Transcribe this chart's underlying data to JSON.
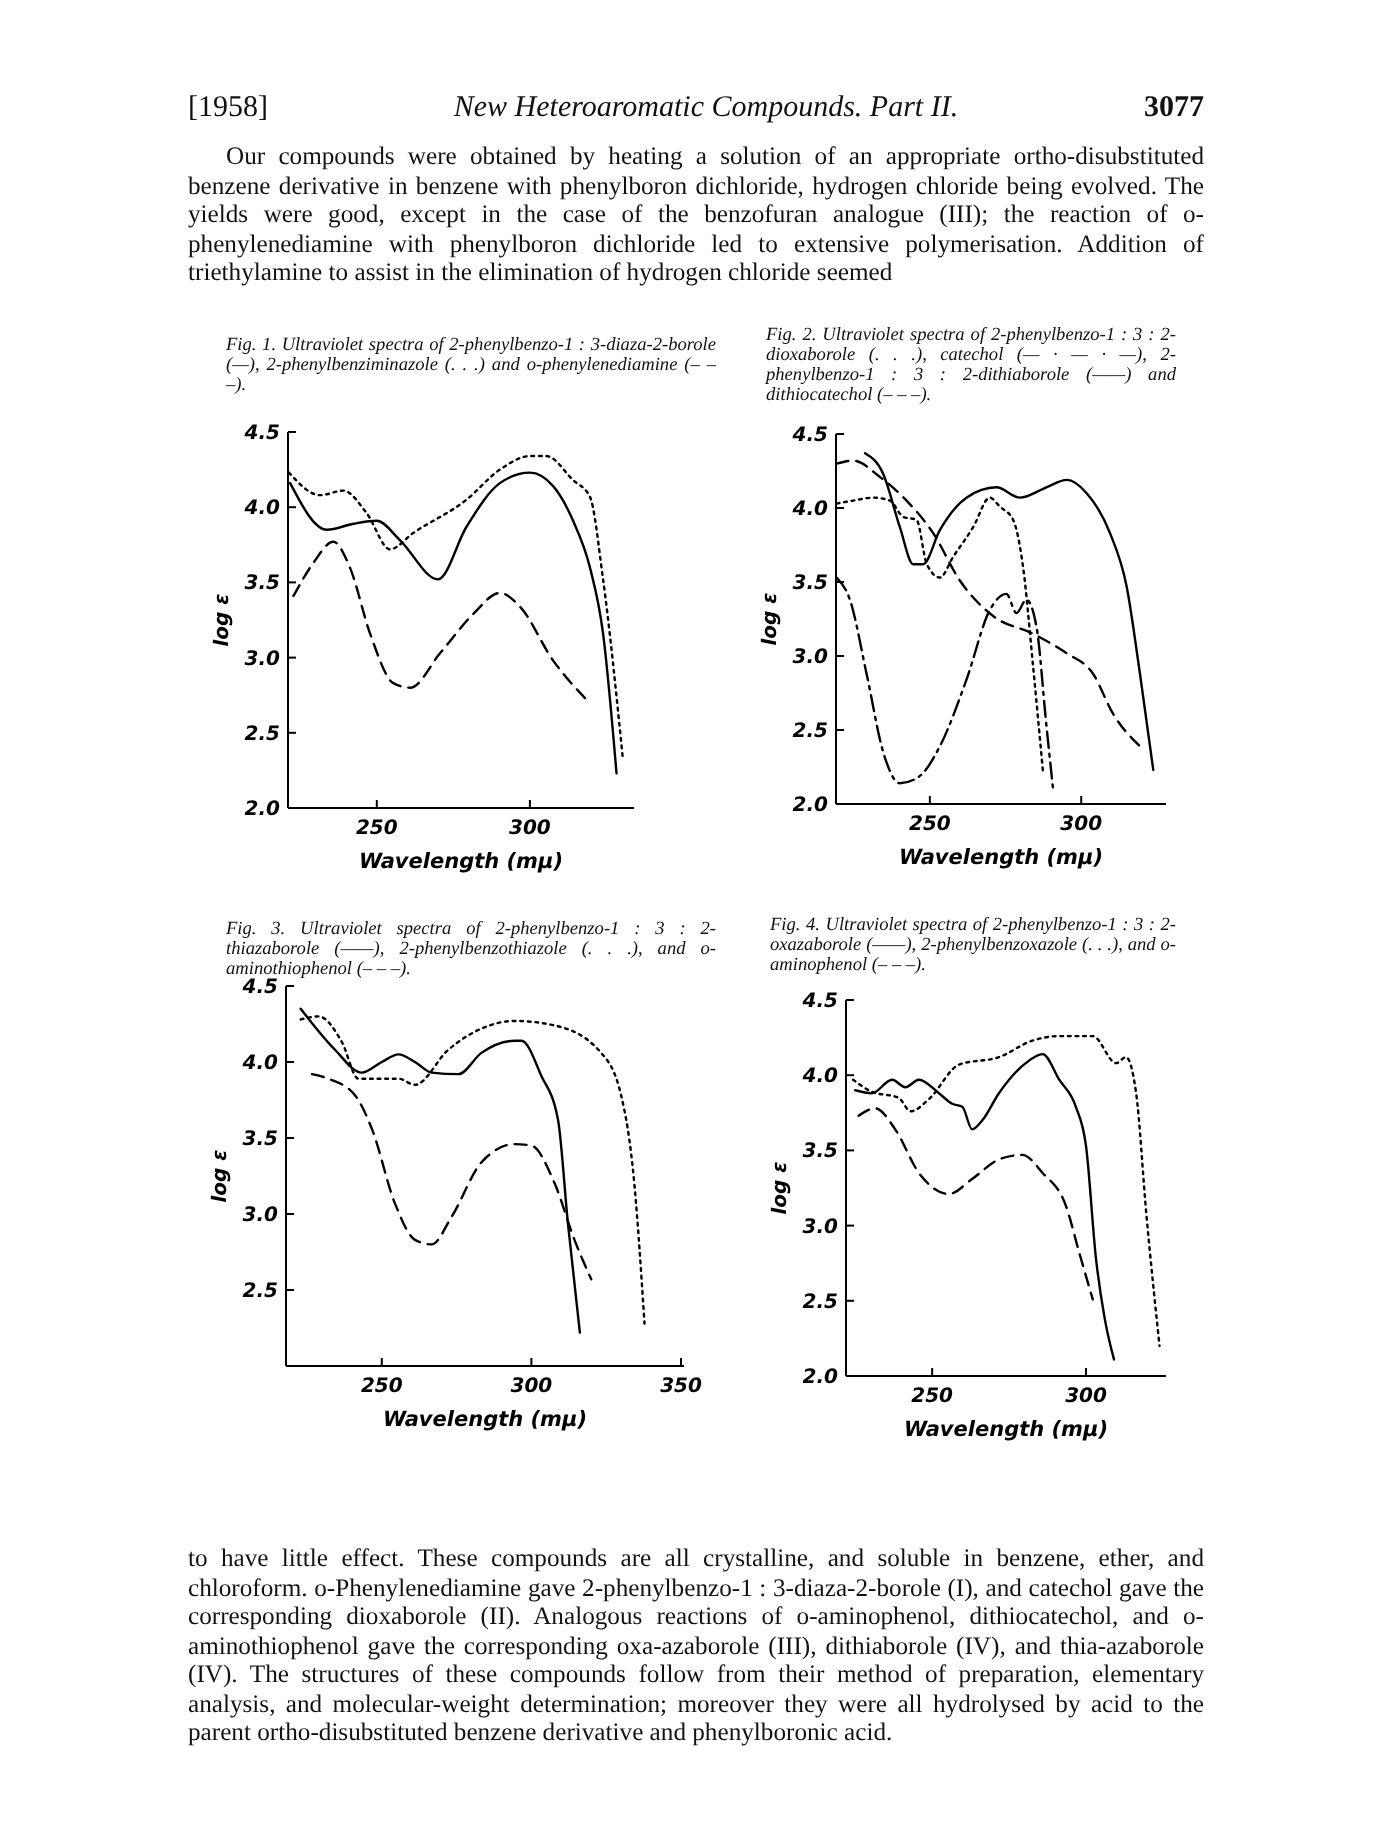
{
  "chart_data": [
    {
      "type": "other",
      "title": "New Heteroaromatic Compounds. Part II.",
      "annotations": [
        "[1958]",
        "3077",
        "Our compounds were obtained by heating a solution of an appropriate ortho-disubstituted benzene derivative in benzene with phenylboron dichloride, hydrogen chloride being evolved. The yields were good, except in the case of the benzofuran analogue (III); the reaction of o-phenylenediamine with phenylboron dichloride led to extensive polymerisation. Addition of triethylamine to assist in the elimination of hydrogen chloride seemed"
      ]
    },
    {
      "type": "line",
      "title": "Fig. 1. Ultraviolet spectra of 2-phenylbenzo-1 : 3-diaza-2-borole (—), 2-phenylbenziminazole (. . .) and o-phenylenediamine (– – –).",
      "xlabel": "Wavelength (mμ)",
      "ylabel": "log ε",
      "xlim": [
        221,
        334
      ],
      "xticks": [
        250,
        300
      ],
      "ylim": [
        2,
        4.5
      ],
      "yticks": [
        {
          "value": 2,
          "label": "2.0"
        },
        {
          "value": 2.5,
          "label": "2.5"
        },
        {
          "value": 3,
          "label": "3.0"
        },
        {
          "value": 3.5,
          "label": "3.5"
        },
        {
          "value": 4,
          "label": "4.0"
        },
        {
          "value": 4.5,
          "label": "4.5"
        }
      ],
      "series": [
        {
          "color": "#000000",
          "line_style": "solid",
          "x": [
            221.7,
            233.7,
            242.4,
            250,
            257.6,
            270,
            279.3,
            290.2,
            300,
            307.6,
            314.1,
            319.6,
            323.9,
            328.3
          ],
          "values": [
            4.16,
            3.85,
            3.89,
            3.91,
            3.78,
            3.52,
            3.87,
            4.16,
            4.23,
            4.14,
            3.91,
            3.6,
            3.16,
            2.23
          ]
        },
        {
          "color": "#000000",
          "line_style": "dotted",
          "x": [
            221.3,
            231.5,
            239.1,
            246.7,
            254.3,
            262,
            279.3,
            290.2,
            300,
            305.4,
            314.1,
            319.6,
            323.9,
            330.4
          ],
          "values": [
            4.23,
            4.08,
            4.11,
            3.96,
            3.72,
            3.83,
            4.05,
            4.25,
            4.34,
            4.34,
            4.18,
            4.07,
            3.52,
            2.32
          ]
        },
        {
          "color": "#000000",
          "line_style": "dashed",
          "x": [
            222.8,
            229.3,
            235.8,
            241.2,
            247.8,
            255.4,
            260.9,
            270.7,
            281.5,
            290.2,
            296.7,
            307.6,
            318.5
          ],
          "values": [
            3.41,
            3.63,
            3.77,
            3.6,
            3.16,
            2.83,
            2.8,
            3.03,
            3.29,
            3.43,
            3.34,
            2.98,
            2.72
          ]
        }
      ]
    },
    {
      "type": "line",
      "title": "Fig. 2. Ultraviolet spectra of 2-phenylbenzo-1 : 3 : 2-dioxaborole (. . .), catechol (— · — · —), 2-phenylbenzo-1 : 3 : 2-dithiaborole (——) and dithiocatechol (– – –).",
      "xlabel": "Wavelength (mμ)",
      "ylabel": "log ε",
      "xlim": [
        219,
        328
      ],
      "xticks": [
        250,
        300
      ],
      "ylim": [
        2,
        4.5
      ],
      "yticks": [
        {
          "value": 2,
          "label": "2.0"
        },
        {
          "value": 2.5,
          "label": "2.5"
        },
        {
          "value": 3,
          "label": "3.0"
        },
        {
          "value": 3.5,
          "label": "3.5"
        },
        {
          "value": 4,
          "label": "4.0"
        },
        {
          "value": 4.5,
          "label": "4.5"
        }
      ],
      "series": [
        {
          "color": "#000000",
          "line_style": "solid",
          "x": [
            228.6,
            234.6,
            240.1,
            244.5,
            247.8,
            253.3,
            262.1,
            272,
            279.7,
            288.5,
            295.2,
            301.8,
            309.5,
            315,
            319.4,
            323.8
          ],
          "values": [
            4.37,
            4.23,
            3.87,
            3.62,
            3.62,
            3.85,
            4.07,
            4.14,
            4.07,
            4.14,
            4.19,
            4.1,
            3.83,
            3.47,
            2.88,
            2.23
          ]
        },
        {
          "color": "#000000",
          "line_style": "dotted",
          "x": [
            219.2,
            224.7,
            231.3,
            236.8,
            241.2,
            245.6,
            249,
            253.3,
            257.7,
            264.3,
            269.8,
            273.1,
            277.5,
            280.8,
            284.1,
            287.4
          ],
          "values": [
            4.03,
            4.05,
            4.07,
            4.05,
            3.94,
            3.92,
            3.62,
            3.53,
            3.67,
            3.87,
            4.07,
            4.01,
            3.92,
            3.6,
            2.93,
            2.21
          ]
        },
        {
          "color": "#000000",
          "line_style": "dashdot",
          "x": [
            219.2,
            223.6,
            229.1,
            234.6,
            240.1,
            246.7,
            253.3,
            262.1,
            269.8,
            275.3,
            278.6,
            281.9,
            285.2,
            288.5,
            290.7
          ],
          "values": [
            3.53,
            3.38,
            2.88,
            2.35,
            2.14,
            2.19,
            2.39,
            2.84,
            3.31,
            3.42,
            3.29,
            3.38,
            3.2,
            2.53,
            2.1
          ]
        },
        {
          "color": "#000000",
          "line_style": "dashed",
          "x": [
            219.2,
            224.7,
            233.5,
            242.3,
            251.1,
            259.9,
            270.9,
            284.1,
            295.1,
            303.9,
            310.5,
            319.4
          ],
          "values": [
            4.3,
            4.32,
            4.21,
            4.05,
            3.83,
            3.51,
            3.27,
            3.15,
            3.02,
            2.88,
            2.61,
            2.39
          ]
        }
      ]
    },
    {
      "type": "line",
      "title": "Fig. 3. Ultraviolet spectra of 2-phenylbenzo-1 : 3 : 2-thiazaborole (——), 2-phenylbenzothiazole (. . .), and o-aminothiophenol (– – –).",
      "xlabel": "Wavelength (mμ)",
      "ylabel": "log ε",
      "xlim": [
        218,
        351
      ],
      "xticks": [
        250,
        300,
        350
      ],
      "ylim": [
        2,
        4.5
      ],
      "yticks": [
        2.5,
        {
          "value": 3,
          "label": "3.0"
        },
        3.5,
        {
          "value": 4,
          "label": "4.0"
        },
        4.5
      ],
      "series": [
        {
          "color": "#000000",
          "line_style": "solid",
          "x": [
            222.9,
            234.4,
            243.3,
            250,
            255.6,
            261.1,
            266.7,
            275.6,
            283.3,
            294.4,
            296.7,
            303.3,
            308.9,
            312.2,
            316.2
          ],
          "values": [
            4.35,
            4.08,
            3.93,
            4,
            4.05,
            4,
            3.93,
            3.92,
            4.06,
            4.14,
            4.14,
            3.91,
            3.62,
            2.94,
            2.22
          ]
        },
        {
          "color": "#000000",
          "line_style": "dotted",
          "x": [
            222.9,
            228.9,
            236.7,
            242.2,
            250,
            255.6,
            261.1,
            272.2,
            283.3,
            294.4,
            307.8,
            323.3,
            330,
            334.4,
            337.8
          ],
          "values": [
            4.28,
            4.3,
            4.13,
            3.89,
            3.89,
            3.89,
            3.85,
            4.08,
            4.22,
            4.27,
            4.24,
            4.06,
            3.78,
            3.2,
            2.28
          ]
        },
        {
          "color": "#000000",
          "line_style": "dashed",
          "x": [
            226.7,
            232.2,
            241.1,
            246.7,
            254.4,
            261.1,
            266.7,
            273.3,
            283.3,
            294.4,
            300,
            307.8,
            314.4,
            320
          ],
          "values": [
            3.92,
            3.89,
            3.78,
            3.56,
            3.07,
            2.83,
            2.8,
            2.98,
            3.34,
            3.46,
            3.45,
            3.2,
            2.83,
            2.57
          ]
        }
      ]
    },
    {
      "type": "line",
      "title": "Fig. 4. Ultraviolet spectra of 2-phenylbenzo-1 : 3 : 2-oxazaborole (——), 2-phenylbenzoxazole (. . .), and o-aminophenol (– – –).",
      "xlabel": "Wavelength (mμ)",
      "ylabel": "log ε",
      "xlim": [
        222,
        326
      ],
      "xticks": [
        250,
        300
      ],
      "ylim": [
        2,
        4.5
      ],
      "yticks": [
        {
          "value": 2,
          "label": "2.0"
        },
        {
          "value": 2.5,
          "label": "2.5"
        },
        {
          "value": 3,
          "label": "3.0"
        },
        {
          "value": 3.5,
          "label": "3.5"
        },
        {
          "value": 4,
          "label": "4.0"
        },
        {
          "value": 4.5,
          "label": "4.5"
        }
      ],
      "series": [
        {
          "color": "#000000",
          "line_style": "solid",
          "x": [
            225,
            230.4,
            237,
            241.3,
            245.7,
            252.2,
            256.5,
            259.8,
            263,
            266.3,
            271.7,
            280.4,
            285.9,
            291.3,
            296.7,
            300,
            303.3,
            306.1,
            309.1
          ],
          "values": [
            3.9,
            3.88,
            3.97,
            3.92,
            3.97,
            3.88,
            3.81,
            3.79,
            3.64,
            3.7,
            3.88,
            4.08,
            4.14,
            3.97,
            3.79,
            3.53,
            2.77,
            2.38,
            2.11
          ]
        },
        {
          "color": "#000000",
          "line_style": "dotted",
          "x": [
            224.3,
            230.4,
            239.1,
            243,
            248.9,
            258.7,
            271.7,
            282.6,
            291.3,
            302.2,
            309.8,
            313,
            316.3,
            319.6,
            323.9
          ],
          "values": [
            3.97,
            3.89,
            3.85,
            3.76,
            3.84,
            4.07,
            4.12,
            4.23,
            4.26,
            4.26,
            4.08,
            4.12,
            3.88,
            3.08,
            2.2
          ]
        },
        {
          "color": "#000000",
          "line_style": "dashed",
          "x": [
            226.1,
            231.5,
            238,
            245.7,
            255.4,
            263,
            271.7,
            279.3,
            285.9,
            293.5,
            297.8,
            302.2
          ],
          "values": [
            3.73,
            3.78,
            3.64,
            3.35,
            3.21,
            3.31,
            3.44,
            3.47,
            3.35,
            3.13,
            2.82,
            2.51
          ]
        }
      ]
    },
    {
      "type": "other",
      "annotations": [
        "to have little effect. These compounds are all crystalline, and soluble in benzene, ether, and chloroform. o-Phenylenediamine gave 2-phenylbenzo-1 : 3-diaza-2-borole (I), and catechol gave the corresponding dioxaborole (II). Analogous reactions of o-aminophenol, dithiocatechol, and o-aminothiophenol gave the corresponding oxa-azaborole (III), dithiaborole (IV), and thia-azaborole (IV). The structures of these compounds follow from their method of preparation, elementary analysis, and molecular-weight determination; moreover they were all hydrolysed by acid to the parent ortho-disubstituted benzene derivative and phenylboronic acid."
      ]
    }
  ]
}
